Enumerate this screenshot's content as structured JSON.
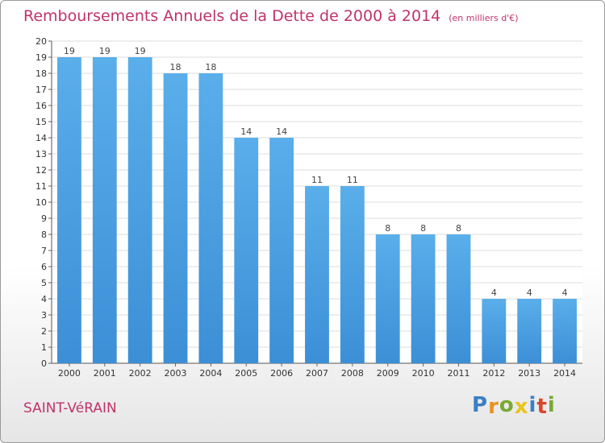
{
  "chart_data": {
    "type": "bar",
    "title": "Remboursements Annuels de la Dette de 2000 à 2014",
    "unit_note": "(en milliers d'€)",
    "categories": [
      "2000",
      "2001",
      "2002",
      "2003",
      "2004",
      "2005",
      "2006",
      "2007",
      "2008",
      "2009",
      "2010",
      "2011",
      "2012",
      "2013",
      "2014"
    ],
    "values": [
      19,
      19,
      19,
      18,
      18,
      14,
      14,
      11,
      11,
      8,
      8,
      8,
      4,
      4,
      4
    ],
    "y_ticks": [
      0,
      1,
      2,
      3,
      4,
      5,
      6,
      7,
      8,
      9,
      10,
      11,
      12,
      13,
      14,
      15,
      16,
      17,
      18,
      19,
      20
    ],
    "ylim": [
      0,
      20
    ],
    "xlabel": "",
    "ylabel": "",
    "grid": true,
    "bar_color": "#3c8fd6",
    "bar_color_light": "#5aaeea",
    "label_color": "#444444"
  },
  "footer": {
    "commune": "SAINT-VéRAIN",
    "logo_letters": [
      "P",
      "r",
      "o",
      "x",
      "i",
      "t",
      "i"
    ],
    "logo_colors": [
      "#3a7fc4",
      "#e8921e",
      "#7aa832",
      "#e8c51e",
      "#3a7fc4",
      "#d9452b",
      "#7aa832"
    ]
  }
}
